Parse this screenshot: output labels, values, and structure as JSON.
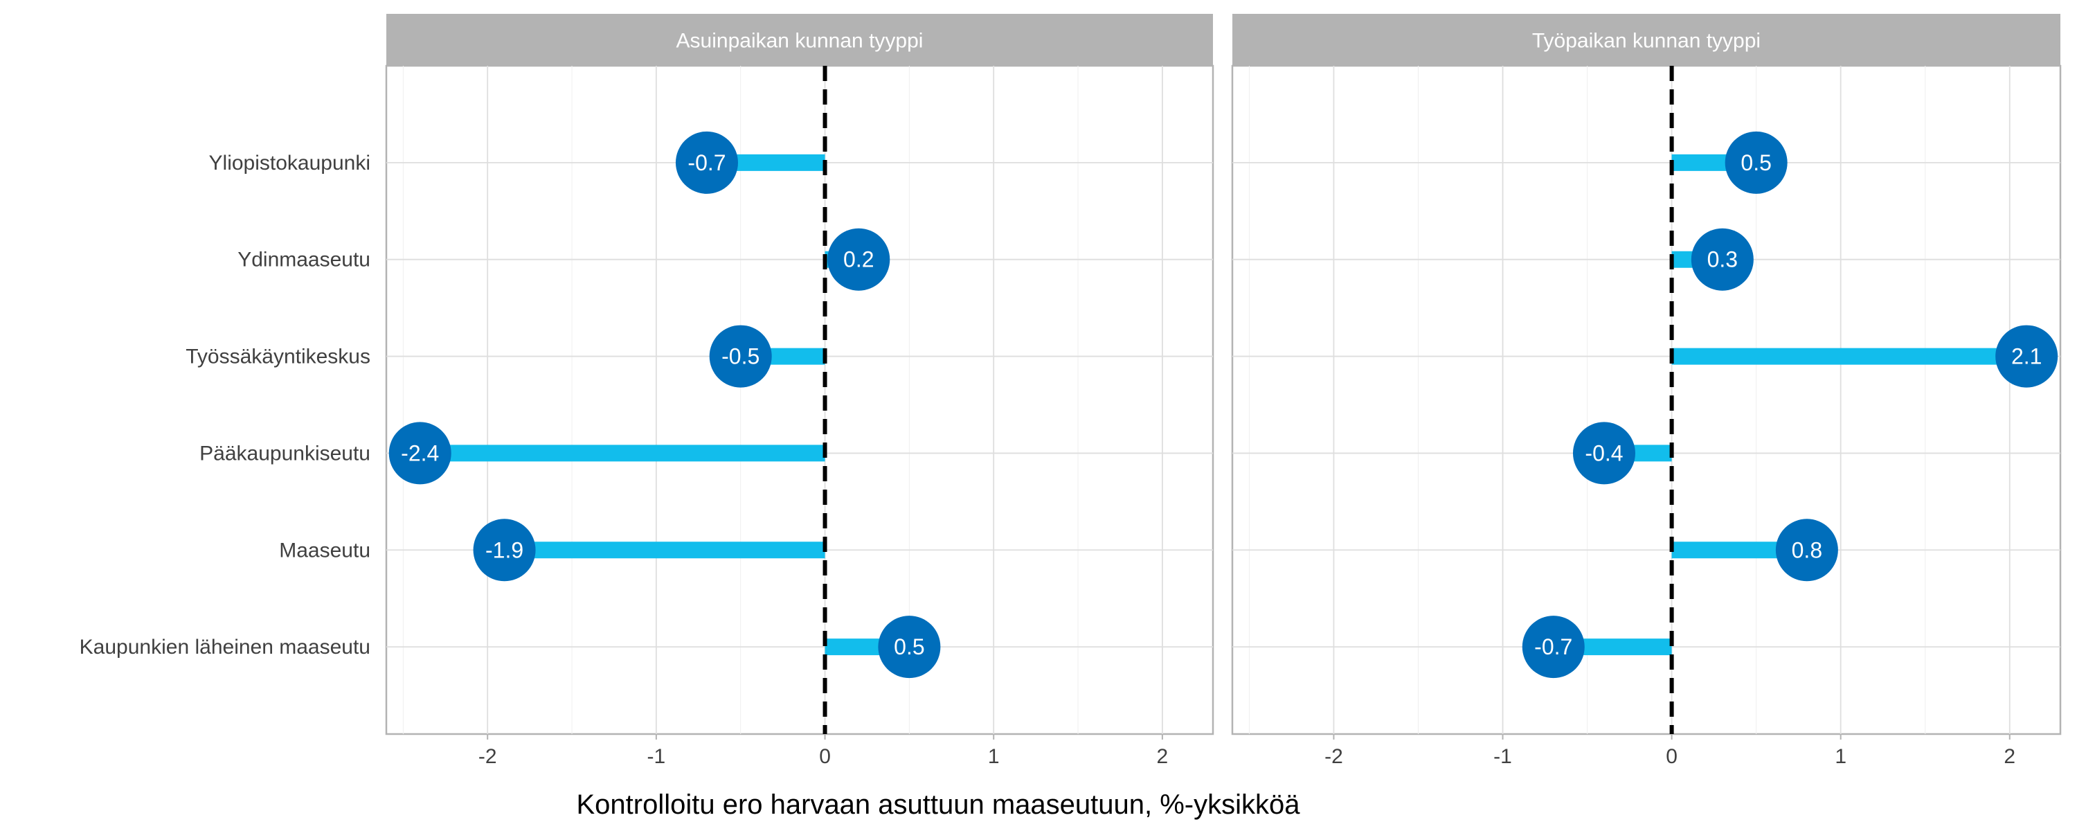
{
  "chart_data": {
    "type": "bar",
    "xlabel": "Kontrolloitu ero harvaan asuttuun maaseutuun, %-yksikköä",
    "categories": [
      "Yliopistokaupunki",
      "Ydinmaaseutu",
      "Työssäkäyntikeskus",
      "Pääkaupunkiseutu",
      "Maaseutu",
      "Kaupunkien läheinen maaseutu"
    ],
    "xlim": [
      -2.6,
      2.3
    ],
    "xticks": [
      -2,
      -1,
      0,
      1,
      2
    ],
    "grid": true,
    "series": [
      {
        "name": "Asuinpaikan kunnan tyyppi",
        "values": [
          -0.7,
          0.2,
          -0.5,
          -2.4,
          -1.9,
          0.5
        ],
        "labels": [
          "-0.7",
          "0.2",
          "-0.5",
          "-2.4",
          "-1.9",
          "0.5"
        ]
      },
      {
        "name": "Työpaikan kunnan tyyppi",
        "values": [
          0.5,
          0.3,
          2.1,
          -0.4,
          0.8,
          -0.7
        ],
        "labels": [
          "0.5",
          "0.3",
          "2.1",
          "-0.4",
          "0.8",
          "-0.7"
        ]
      }
    ],
    "colors": {
      "bar": "#12bdec",
      "point": "#006ebb",
      "strip": "#b3b3b3",
      "reference_line": "#000000"
    }
  }
}
